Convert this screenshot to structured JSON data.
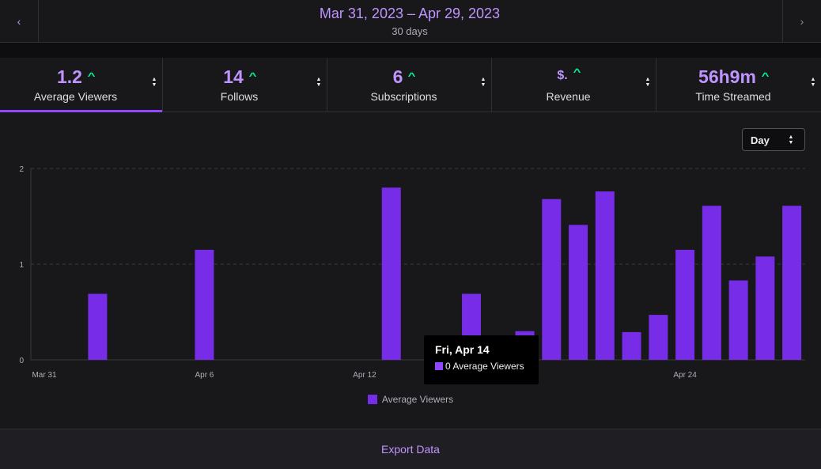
{
  "header": {
    "date_range": "Mar 31, 2023 – Apr 29, 2023",
    "days": "30 days",
    "prev_icon": "chevron-left-icon",
    "next_icon": "chevron-right-icon"
  },
  "stats": [
    {
      "value": "1.2",
      "label": "Average Viewers",
      "trend": "up",
      "active": true
    },
    {
      "value": "14",
      "label": "Follows",
      "trend": "up",
      "active": false
    },
    {
      "value": "6",
      "label": "Subscriptions",
      "trend": "up",
      "active": false
    },
    {
      "value": "$.",
      "label": "Revenue",
      "trend": "up",
      "active": false
    },
    {
      "value": "56h9m",
      "label": "Time Streamed",
      "trend": "up",
      "active": false
    }
  ],
  "chart_controls": {
    "period": "Day"
  },
  "chart_data": {
    "type": "bar",
    "title": "",
    "xlabel": "",
    "ylabel": "",
    "ylim": [
      0,
      2
    ],
    "yticks": [
      "0",
      "1",
      "2"
    ],
    "grid": true,
    "legend_position": "bottom-center",
    "categories": [
      "Mar 31",
      "Apr 1",
      "Apr 2",
      "Apr 3",
      "Apr 4",
      "Apr 5",
      "Apr 6",
      "Apr 7",
      "Apr 8",
      "Apr 9",
      "Apr 10",
      "Apr 11",
      "Apr 12",
      "Apr 13",
      "Apr 14",
      "Apr 15",
      "Apr 16",
      "Apr 17",
      "Apr 18",
      "Apr 19",
      "Apr 20",
      "Apr 21",
      "Apr 22",
      "Apr 23",
      "Apr 24",
      "Apr 25",
      "Apr 26",
      "Apr 27",
      "Apr 28"
    ],
    "xtick_labels": [
      {
        "index": 0,
        "text": "Mar 31"
      },
      {
        "index": 6,
        "text": "Apr 6"
      },
      {
        "index": 12,
        "text": "Apr 12"
      },
      {
        "index": 24,
        "text": "Apr 24"
      }
    ],
    "series": [
      {
        "name": "Average Viewers",
        "color": "#772ce8",
        "values": [
          0,
          0,
          0.69,
          0,
          0,
          0,
          1.15,
          0,
          0,
          0,
          0,
          0,
          0,
          1.8,
          0,
          0,
          0.69,
          0,
          0.3,
          1.68,
          1.41,
          1.76,
          0.29,
          0.47,
          1.15,
          1.61,
          0.83,
          1.08,
          1.61
        ]
      }
    ],
    "legend": [
      "Average Viewers"
    ]
  },
  "tooltip": {
    "title": "Fri, Apr 14",
    "text": "0 Average Viewers"
  },
  "footer": {
    "export_label": "Export Data"
  }
}
